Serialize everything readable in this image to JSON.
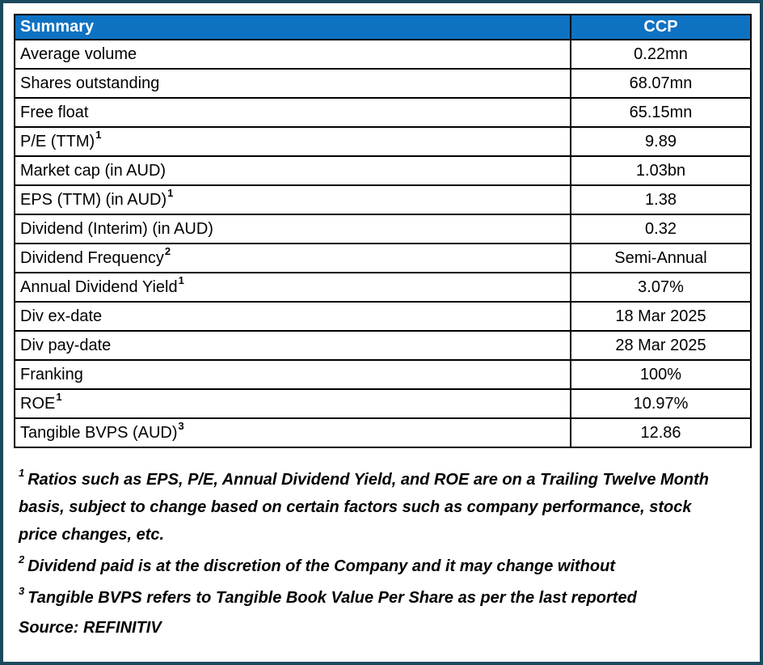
{
  "frame": {
    "border_color": "#1b4a5f",
    "header_bg_color": "#0e72c3",
    "header_text_color": "#ffffff"
  },
  "table": {
    "header": {
      "label": "Summary",
      "value": "CCP"
    },
    "rows": [
      {
        "label": "Average volume",
        "sup": "",
        "value": "0.22mn"
      },
      {
        "label": "Shares outstanding",
        "sup": "",
        "value": "68.07mn"
      },
      {
        "label": "Free float",
        "sup": "",
        "value": "65.15mn"
      },
      {
        "label": "P/E (TTM)",
        "sup": "1",
        "value": "9.89"
      },
      {
        "label": "Market cap (in AUD)",
        "sup": "",
        "value": "1.03bn"
      },
      {
        "label": "EPS (TTM) (in AUD)",
        "sup": "1",
        "value": "1.38"
      },
      {
        "label": "Dividend (Interim) (in AUD)",
        "sup": "",
        "value": "0.32"
      },
      {
        "label": "Dividend Frequency",
        "sup": "2",
        "value": "Semi-Annual"
      },
      {
        "label": "Annual Dividend Yield",
        "sup": "1",
        "value": "3.07%"
      },
      {
        "label": "Div ex-date",
        "sup": "",
        "value": "18 Mar 2025"
      },
      {
        "label": "Div pay-date",
        "sup": "",
        "value": "28 Mar 2025"
      },
      {
        "label": "Franking",
        "sup": "",
        "value": "100%"
      },
      {
        "label": "ROE",
        "sup": "1",
        "value": "10.97%"
      },
      {
        "label": "Tangible BVPS (AUD)",
        "sup": "3",
        "value": "12.86"
      }
    ]
  },
  "footnotes": [
    {
      "sup": "1",
      "text": "Ratios such as EPS, P/E, Annual Dividend Yield, and ROE are on a Trailing Twelve Month basis, subject to change based on certain factors such as company performance, stock price changes, etc."
    },
    {
      "sup": "2",
      "text": "Dividend paid is at the discretion of the Company and it may change without"
    },
    {
      "sup": "3",
      "text": "Tangible BVPS refers to Tangible Book Value Per Share as per the last reported"
    }
  ],
  "source": "Source: REFINITIV"
}
